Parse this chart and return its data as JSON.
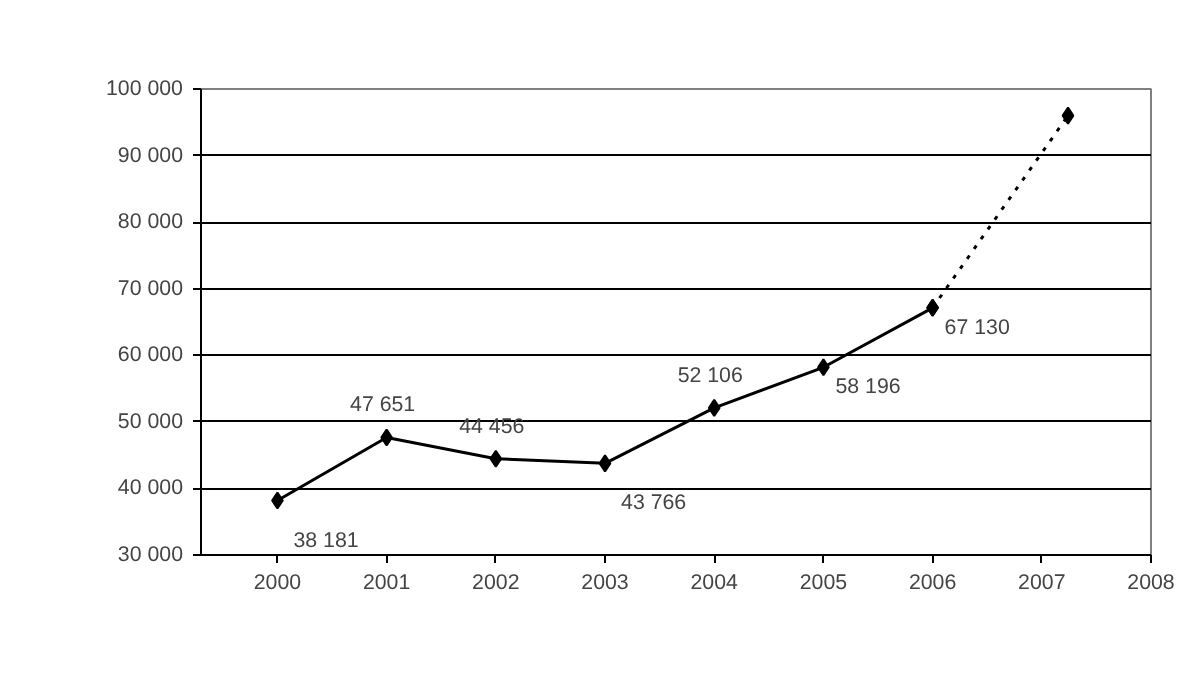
{
  "chart_data": {
    "type": "line",
    "x": [
      2000,
      2001,
      2002,
      2003,
      2004,
      2005,
      2006
    ],
    "series": [
      {
        "color": "#000000",
        "values": [
          38181,
          47651,
          44456,
          43766,
          52106,
          58196,
          67130
        ],
        "value_labels": [
          "38 181",
          "47 651",
          "44 456",
          "43 766",
          "52 106",
          "58 196",
          "67 130"
        ],
        "line_style": "solid"
      },
      {
        "color": "#000000",
        "x": [
          2006,
          2007.24
        ],
        "values": [
          67130,
          96000
        ],
        "line_style": "dotted"
      }
    ],
    "xlim": [
      1999.3,
      2008
    ],
    "xticks": [
      2000,
      2001,
      2002,
      2003,
      2004,
      2005,
      2006,
      2007,
      2008
    ],
    "ylim": [
      30000,
      100000
    ],
    "yticks": [
      {
        "value": 30000,
        "label": "30 000"
      },
      {
        "value": 40000,
        "label": "40 000"
      },
      {
        "value": 50000,
        "label": "50 000"
      },
      {
        "value": 60000,
        "label": "60 000"
      },
      {
        "value": 70000,
        "label": "70 000"
      },
      {
        "value": 80000,
        "label": "80 000"
      },
      {
        "value": 90000,
        "label": "90 000"
      },
      {
        "value": 100000,
        "label": "100 000"
      }
    ],
    "grid": "y",
    "marker": "diamond"
  }
}
